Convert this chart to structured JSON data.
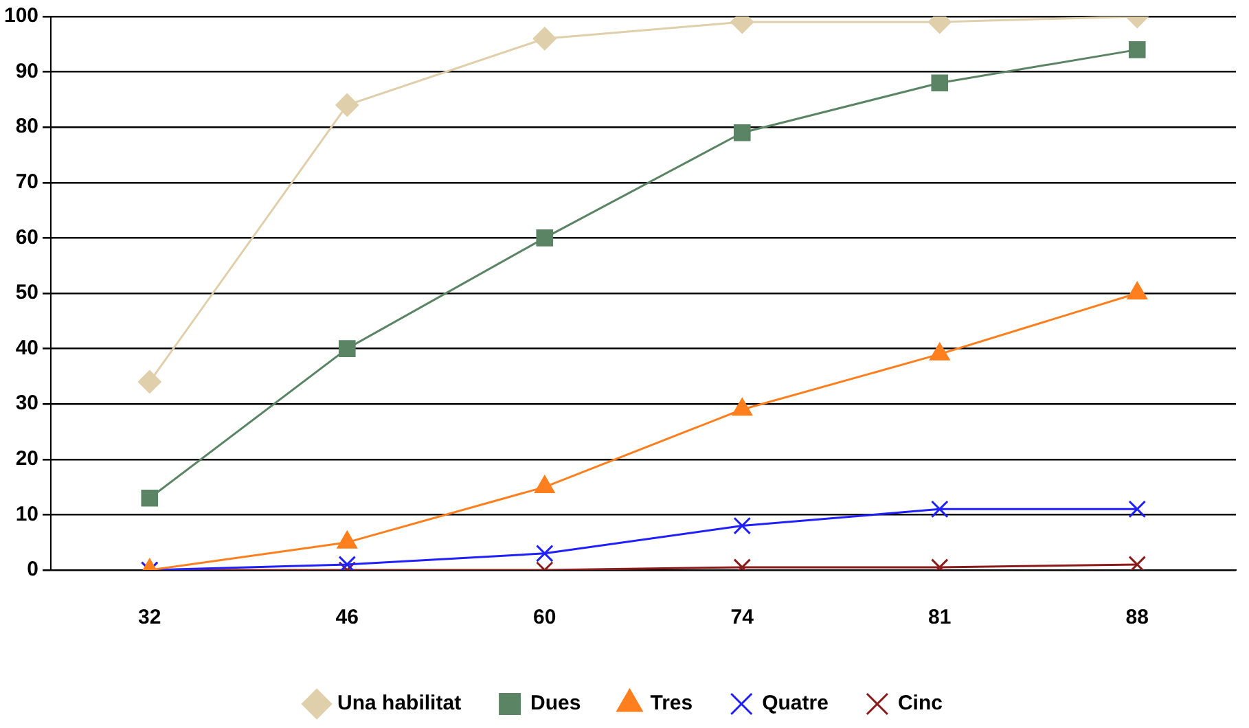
{
  "chart_data": {
    "type": "line",
    "categories": [
      "32",
      "46",
      "60",
      "74",
      "81",
      "88"
    ],
    "series": [
      {
        "name": "Una habilitat",
        "color": "#e0cfab",
        "marker": "diamond",
        "values": [
          34,
          84,
          96,
          99,
          99,
          100
        ]
      },
      {
        "name": "Dues",
        "color": "#5a8464",
        "marker": "square",
        "values": [
          13,
          40,
          60,
          79,
          88,
          94
        ]
      },
      {
        "name": "Tres",
        "color": "#ff7f1e",
        "marker": "triangle",
        "values": [
          0,
          5,
          15,
          29,
          39,
          50
        ]
      },
      {
        "name": "Quatre",
        "color": "#1f1fff",
        "marker": "cross",
        "values": [
          0,
          1,
          3,
          8,
          11,
          11
        ]
      },
      {
        "name": "Cinc",
        "color": "#8b1a1a",
        "marker": "cross",
        "values": [
          0,
          0,
          0,
          0.5,
          0.5,
          1
        ]
      }
    ],
    "ylim": [
      0,
      100
    ],
    "yticks": [
      0,
      10,
      20,
      30,
      40,
      50,
      60,
      70,
      80,
      90,
      100
    ],
    "grid": "y",
    "legend": "bottom"
  }
}
